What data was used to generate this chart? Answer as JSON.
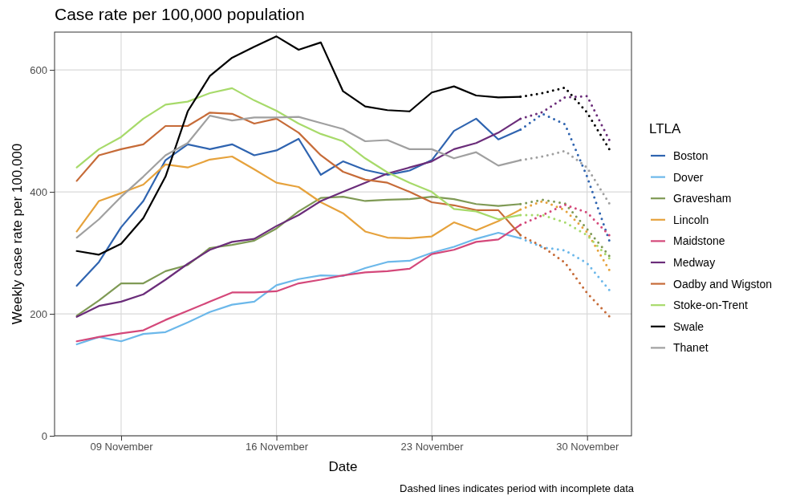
{
  "chart_data": {
    "type": "line",
    "title": "Case rate per 100,000 population",
    "xlabel": "Date",
    "ylabel": "Weekly case rate per 100,000",
    "legend_title": "LTLA",
    "annotations": [
      "Dashed lines indicates period with incomplete data"
    ],
    "x": [
      "--11-07",
      "--11-08",
      "--11-09",
      "--11-10",
      "--11-11",
      "--11-12",
      "--11-13",
      "--11-14",
      "--11-15",
      "--11-16",
      "--11-17",
      "--11-18",
      "--11-19",
      "--11-20",
      "--11-21",
      "--11-22",
      "--11-23",
      "--11-24",
      "--11-25",
      "--11-26",
      "--11-27",
      "--11-28",
      "--11-29",
      "--11-30",
      "--12-01"
    ],
    "xlim": [
      "--11-06",
      "--12-02"
    ],
    "xticks": [
      {
        "value": "--11-09",
        "label": "09 November"
      },
      {
        "value": "--11-16",
        "label": "16 November"
      },
      {
        "value": "--11-23",
        "label": "23 November"
      },
      {
        "value": "--11-30",
        "label": "30 November"
      }
    ],
    "ylim": [
      0,
      662
    ],
    "yticks": [
      0,
      200,
      400,
      600
    ],
    "grid": true,
    "legend": "right",
    "marker": "none",
    "series": [
      {
        "name": "Boston",
        "color": "#2f64b0",
        "line_style": "solid",
        "values": [
          246,
          285,
          342,
          385,
          452,
          478,
          470,
          478,
          460,
          468,
          487,
          428,
          450,
          436,
          428,
          435,
          452,
          500,
          520,
          486,
          502,
          null,
          null,
          null,
          null
        ]
      },
      {
        "name": "Dover",
        "color": "#6cb8ea",
        "line_style": "solid",
        "values": [
          150,
          162,
          155,
          167,
          170,
          186,
          203,
          215,
          220,
          247,
          257,
          263,
          262,
          275,
          285,
          287,
          300,
          310,
          323,
          333,
          324,
          null,
          null,
          null,
          null
        ]
      },
      {
        "name": "Gravesham",
        "color": "#7f9a55",
        "line_style": "solid",
        "values": [
          197,
          222,
          250,
          250,
          270,
          280,
          308,
          313,
          320,
          340,
          368,
          390,
          392,
          385,
          387,
          388,
          392,
          388,
          380,
          377,
          380,
          null,
          null,
          null,
          null
        ]
      },
      {
        "name": "Lincoln",
        "color": "#e6a23c",
        "line_style": "solid",
        "values": [
          335,
          385,
          398,
          412,
          445,
          440,
          453,
          458,
          437,
          415,
          408,
          383,
          365,
          335,
          325,
          324,
          327,
          350,
          337,
          352,
          371,
          null,
          null,
          null,
          null
        ]
      },
      {
        "name": "Maidstone",
        "color": "#d4487a",
        "line_style": "solid",
        "values": [
          155,
          162,
          168,
          173,
          190,
          205,
          220,
          235,
          235,
          237,
          250,
          256,
          263,
          268,
          270,
          274,
          298,
          305,
          318,
          322,
          346,
          null,
          null,
          null,
          null
        ]
      },
      {
        "name": "Medway",
        "color": "#6b2d7a",
        "line_style": "solid",
        "values": [
          195,
          213,
          220,
          232,
          256,
          282,
          305,
          318,
          323,
          344,
          362,
          385,
          400,
          415,
          430,
          440,
          450,
          470,
          480,
          497,
          520,
          null,
          null,
          null,
          null
        ]
      },
      {
        "name": "Oadby and Wigston",
        "color": "#c66b38",
        "line_style": "solid",
        "values": [
          418,
          460,
          470,
          478,
          508,
          508,
          530,
          528,
          512,
          520,
          497,
          460,
          433,
          420,
          415,
          400,
          383,
          378,
          370,
          370,
          329,
          null,
          null,
          null,
          null
        ]
      },
      {
        "name": "Stoke-on-Trent",
        "color": "#a7da6a",
        "line_style": "solid",
        "values": [
          440,
          470,
          490,
          520,
          543,
          548,
          562,
          570,
          550,
          533,
          512,
          495,
          483,
          455,
          432,
          415,
          400,
          372,
          368,
          355,
          362,
          null,
          null,
          null,
          null
        ]
      },
      {
        "name": "Swale",
        "color": "#000000",
        "line_style": "solid",
        "values": [
          303,
          297,
          315,
          357,
          425,
          532,
          590,
          620,
          638,
          655,
          633,
          645,
          565,
          540,
          534,
          532,
          563,
          573,
          558,
          555,
          556,
          null,
          null,
          null,
          null
        ]
      },
      {
        "name": "Thanet",
        "color": "#a0a0a0",
        "line_style": "solid",
        "values": [
          325,
          355,
          392,
          425,
          460,
          480,
          525,
          517,
          522,
          522,
          523,
          513,
          503,
          483,
          485,
          470,
          470,
          455,
          465,
          443,
          452,
          null,
          null,
          null,
          null
        ]
      },
      {
        "color": "#2f64b0",
        "line_style": "dotted",
        "values": [
          null,
          null,
          null,
          null,
          null,
          null,
          null,
          null,
          null,
          null,
          null,
          null,
          null,
          null,
          null,
          null,
          null,
          null,
          null,
          null,
          502,
          528,
          511,
          425,
          320
        ]
      },
      {
        "color": "#6cb8ea",
        "line_style": "dotted",
        "values": [
          null,
          null,
          null,
          null,
          null,
          null,
          null,
          null,
          null,
          null,
          null,
          null,
          null,
          null,
          null,
          null,
          null,
          null,
          null,
          null,
          324,
          309,
          304,
          283,
          239
        ]
      },
      {
        "color": "#7f9a55",
        "line_style": "dotted",
        "values": [
          null,
          null,
          null,
          null,
          null,
          null,
          null,
          null,
          null,
          null,
          null,
          null,
          null,
          null,
          null,
          null,
          null,
          null,
          null,
          null,
          380,
          387,
          381,
          339,
          295
        ]
      },
      {
        "color": "#e6a23c",
        "line_style": "dotted",
        "values": [
          null,
          null,
          null,
          null,
          null,
          null,
          null,
          null,
          null,
          null,
          null,
          null,
          null,
          null,
          null,
          null,
          null,
          null,
          null,
          null,
          371,
          385,
          370,
          334,
          272
        ]
      },
      {
        "color": "#d4487a",
        "line_style": "dotted",
        "values": [
          null,
          null,
          null,
          null,
          null,
          null,
          null,
          null,
          null,
          null,
          null,
          null,
          null,
          null,
          null,
          null,
          null,
          null,
          null,
          null,
          346,
          362,
          379,
          366,
          329
        ]
      },
      {
        "color": "#6b2d7a",
        "line_style": "dotted",
        "values": [
          null,
          null,
          null,
          null,
          null,
          null,
          null,
          null,
          null,
          null,
          null,
          null,
          null,
          null,
          null,
          null,
          null,
          null,
          null,
          null,
          520,
          531,
          555,
          557,
          485
        ]
      },
      {
        "color": "#c66b38",
        "line_style": "dotted",
        "values": [
          null,
          null,
          null,
          null,
          null,
          null,
          null,
          null,
          null,
          null,
          null,
          null,
          null,
          null,
          null,
          null,
          null,
          null,
          null,
          null,
          329,
          310,
          284,
          234,
          196
        ]
      },
      {
        "color": "#a7da6a",
        "line_style": "dotted",
        "values": [
          null,
          null,
          null,
          null,
          null,
          null,
          null,
          null,
          null,
          null,
          null,
          null,
          null,
          null,
          null,
          null,
          null,
          null,
          null,
          null,
          362,
          362,
          350,
          329,
          291
        ]
      },
      {
        "color": "#000000",
        "line_style": "dotted",
        "values": [
          null,
          null,
          null,
          null,
          null,
          null,
          null,
          null,
          null,
          null,
          null,
          null,
          null,
          null,
          null,
          null,
          null,
          null,
          null,
          null,
          556,
          562,
          571,
          530,
          470
        ]
      },
      {
        "color": "#a0a0a0",
        "line_style": "dotted",
        "values": [
          null,
          null,
          null,
          null,
          null,
          null,
          null,
          null,
          null,
          null,
          null,
          null,
          null,
          null,
          null,
          null,
          null,
          null,
          null,
          null,
          452,
          458,
          467,
          440,
          381
        ]
      }
    ]
  }
}
